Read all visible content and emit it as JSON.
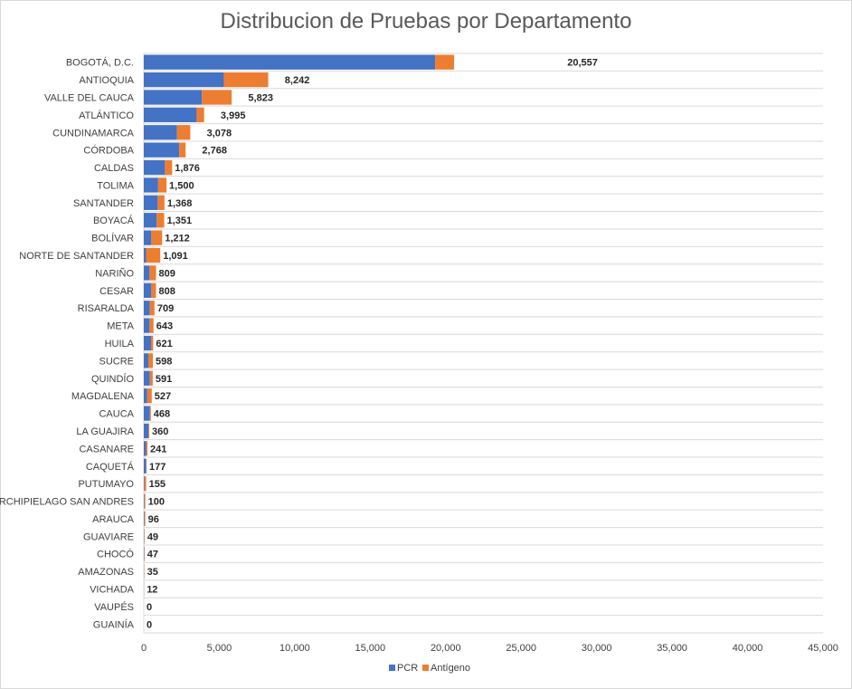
{
  "chart_data": {
    "type": "bar",
    "orientation": "horizontal",
    "stacked": true,
    "title": "Distribucion de Pruebas por Departamento",
    "xlabel": "",
    "ylabel": "",
    "xlim": [
      0,
      45000
    ],
    "x_ticks": [
      0,
      5000,
      10000,
      15000,
      20000,
      25000,
      30000,
      35000,
      40000,
      45000
    ],
    "x_tick_labels": [
      "0",
      "5,000",
      "10,000",
      "15,000",
      "20,000",
      "25,000",
      "30,000",
      "35,000",
      "40,000",
      "45,000"
    ],
    "grid": true,
    "legend_position": "bottom",
    "categories": [
      "BOGOTÁ, D.C.",
      "ANTIOQUIA",
      "VALLE DEL CAUCA",
      "ATLÁNTICO",
      "CUNDINAMARCA",
      "CÓRDOBA",
      "CALDAS",
      "TOLIMA",
      "SANTANDER",
      "BOYACÁ",
      "BOLÍVAR",
      "NORTE DE SANTANDER",
      "NARIÑO",
      "CESAR",
      "RISARALDA",
      "META",
      "HUILA",
      "SUCRE",
      "QUINDÍO",
      "MAGDALENA",
      "CAUCA",
      "LA GUAJIRA",
      "CASANARE",
      "CAQUETÁ",
      "PUTUMAYO",
      "ARCHIPIELAGO SAN ANDRES",
      "ARAUCA",
      "GUAVIARE",
      "CHOCÓ",
      "AMAZONAS",
      "VICHADA",
      "VAUPÉS",
      "GUAINÍA"
    ],
    "series": [
      {
        "name": "PCR",
        "color": "#4472c4",
        "values": [
          19300,
          5300,
          3850,
          3500,
          2200,
          2350,
          1400,
          950,
          920,
          850,
          500,
          150,
          380,
          500,
          400,
          380,
          480,
          300,
          400,
          230,
          400,
          300,
          150,
          150,
          40,
          40,
          40,
          20,
          25,
          10,
          8,
          0,
          0
        ]
      },
      {
        "name": "Antígeno",
        "color": "#ed7d31",
        "values": [
          1257,
          2942,
          1973,
          495,
          878,
          418,
          476,
          550,
          448,
          501,
          712,
          941,
          429,
          308,
          309,
          263,
          141,
          298,
          191,
          297,
          68,
          60,
          91,
          27,
          115,
          60,
          56,
          29,
          22,
          25,
          4,
          0,
          0
        ]
      }
    ],
    "totals": [
      20557,
      8242,
      5823,
      3995,
      3078,
      2768,
      1876,
      1500,
      1368,
      1351,
      1212,
      1091,
      809,
      808,
      709,
      643,
      621,
      598,
      591,
      527,
      468,
      360,
      241,
      177,
      155,
      100,
      96,
      49,
      47,
      35,
      12,
      0,
      0
    ],
    "total_labels": [
      "20,557",
      "8,242",
      "5,823",
      "3,995",
      "3,078",
      "2,768",
      "1,876",
      "1,500",
      "1,368",
      "1,351",
      "1,212",
      "1,091",
      "809",
      "808",
      "709",
      "643",
      "621",
      "598",
      "591",
      "527",
      "468",
      "360",
      "241",
      "177",
      "155",
      "100",
      "96",
      "49",
      "47",
      "35",
      "12",
      "0",
      "0"
    ],
    "legend": [
      "PCR",
      "Antígeno"
    ]
  },
  "colors": {
    "pcr": "#4472c4",
    "antigeno": "#ed7d31",
    "grid": "#d9d9d9",
    "text": "#404040"
  }
}
